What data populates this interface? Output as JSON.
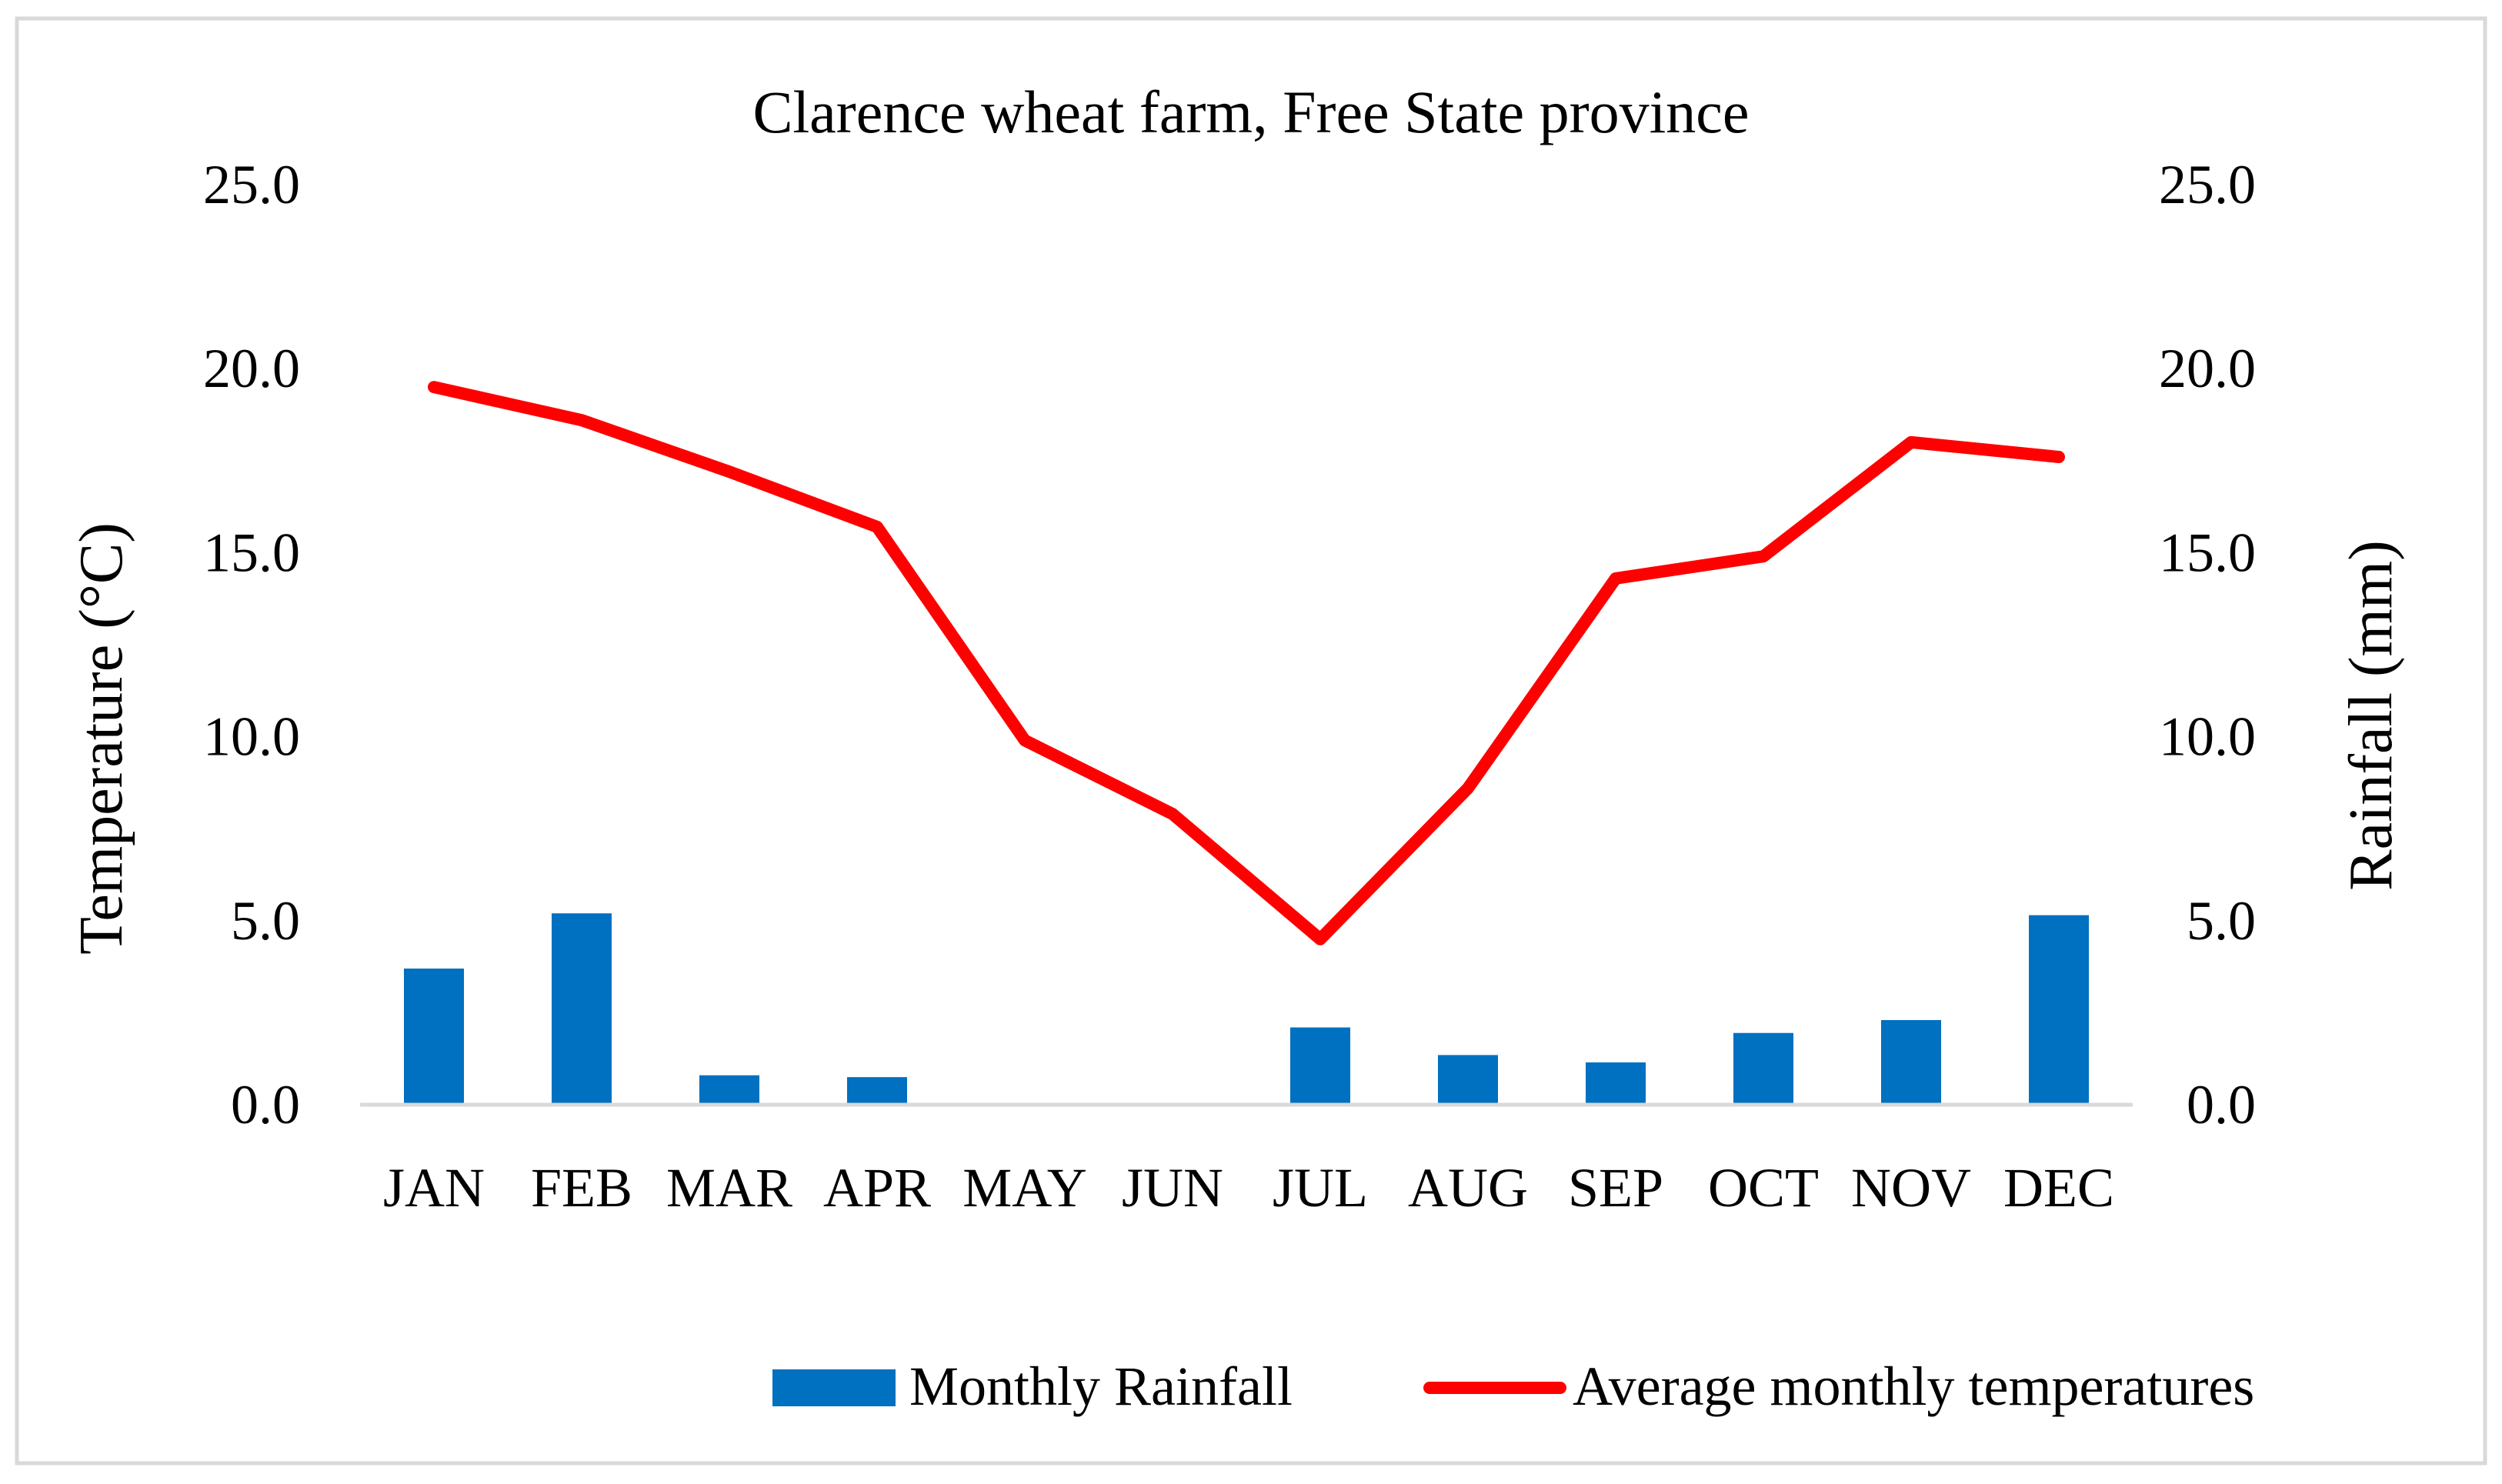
{
  "chart_data": {
    "type": "bar+line",
    "title": "Clarence wheat farm, Free State province",
    "categories": [
      "JAN",
      "FEB",
      "MAR",
      "APR",
      "MAY",
      "JUN",
      "JUL",
      "AUG",
      "SEP",
      "OCT",
      "NOV",
      "DEC"
    ],
    "series": [
      {
        "name": "Monthly Rainfall",
        "type": "bar",
        "axis": "right",
        "color": "#0070C0",
        "values": [
          3.7,
          5.2,
          0.8,
          0.75,
          0.05,
          0.0,
          2.1,
          1.35,
          1.15,
          1.95,
          2.3,
          5.15
        ]
      },
      {
        "name": "Average monthly temperatures",
        "type": "line",
        "axis": "left",
        "color": "#FF0000",
        "values": [
          19.5,
          18.6,
          17.2,
          15.7,
          9.9,
          7.9,
          4.5,
          8.6,
          14.3,
          14.9,
          18.0,
          17.6
        ]
      }
    ],
    "y_left": {
      "label": "Temperature (°C)",
      "range": [
        0,
        25
      ],
      "ticks": [
        "0.0",
        "5.0",
        "10.0",
        "15.0",
        "20.0",
        "25.0"
      ]
    },
    "y_right": {
      "label": "Rainfall (mm)",
      "range": [
        0,
        25
      ],
      "ticks": [
        "0.0",
        "5.0",
        "10.0",
        "15.0",
        "20.0",
        "25.0"
      ]
    },
    "grid": false,
    "legend_position": "bottom-right"
  }
}
